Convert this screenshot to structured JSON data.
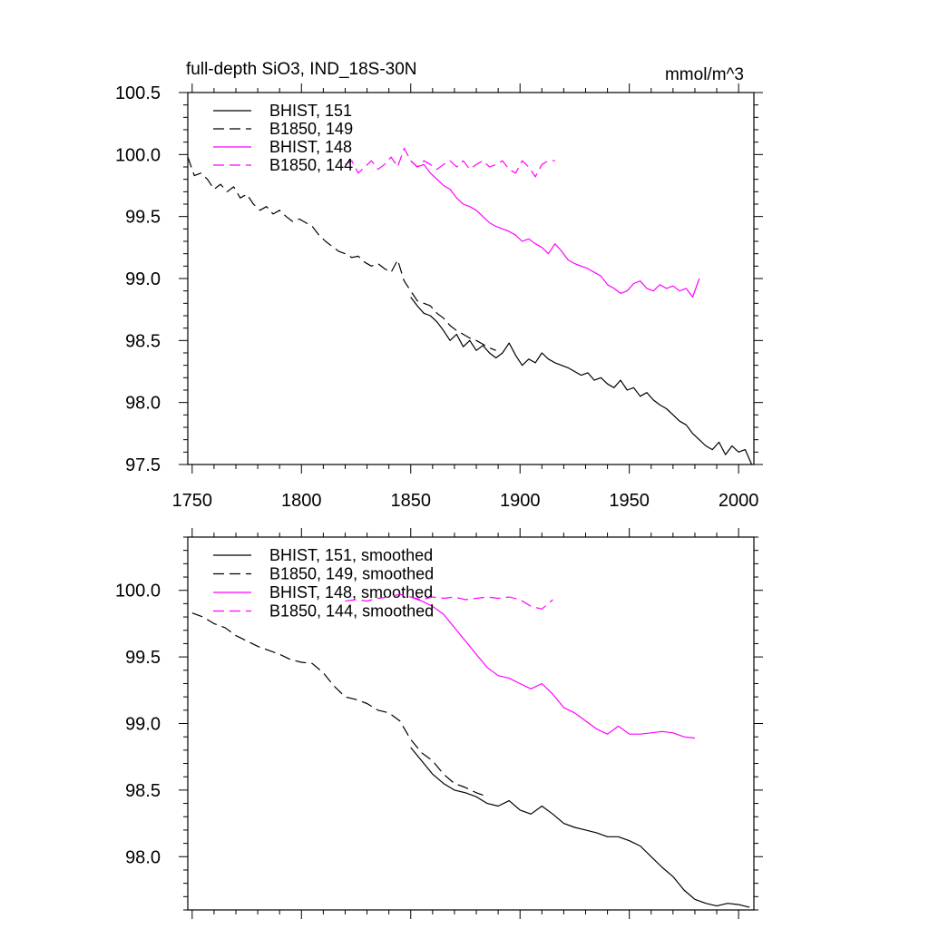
{
  "figure": {
    "title_left": "full-depth SiO3, IND_18S-30N",
    "title_right": "mmol/m^3"
  },
  "colors": {
    "black": "#000000",
    "magenta": "#ff00ff"
  },
  "chart_data": [
    {
      "type": "line",
      "panel": "top",
      "title": "full-depth SiO3, IND_18S-30N",
      "units": "mmol/m^3",
      "xlim": [
        1748,
        2007
      ],
      "ylim": [
        97.5,
        100.5
      ],
      "xticks": [
        1750,
        1800,
        1850,
        1900,
        1950,
        2000
      ],
      "xtick_labels": [
        "1750",
        "1800",
        "1850",
        "1900",
        "1950",
        "2000"
      ],
      "yticks": [
        97.5,
        98.0,
        98.5,
        99.0,
        99.5,
        100.0,
        100.5
      ],
      "ytick_labels": [
        "97.5",
        "98.0",
        "98.5",
        "99.0",
        "99.5",
        "100.0",
        "100.5"
      ],
      "grid": false,
      "legend": "top-left",
      "series": [
        {
          "name": "BHIST, 151",
          "color": "#000000",
          "dash": "solid",
          "x": [
            1850,
            1853,
            1856,
            1859,
            1862,
            1865,
            1868,
            1871,
            1874,
            1877,
            1880,
            1883,
            1886,
            1889,
            1892,
            1895,
            1898,
            1901,
            1904,
            1907,
            1910,
            1913,
            1916,
            1919,
            1922,
            1925,
            1928,
            1931,
            1934,
            1937,
            1940,
            1943,
            1946,
            1949,
            1952,
            1955,
            1958,
            1961,
            1964,
            1967,
            1970,
            1973,
            1976,
            1979,
            1982,
            1985,
            1988,
            1991,
            1994,
            1997,
            2000,
            2003,
            2006
          ],
          "y": [
            98.85,
            98.78,
            98.72,
            98.7,
            98.65,
            98.58,
            98.5,
            98.55,
            98.45,
            98.5,
            98.42,
            98.46,
            98.4,
            98.36,
            98.4,
            98.48,
            98.38,
            98.3,
            98.35,
            98.32,
            98.4,
            98.35,
            98.32,
            98.3,
            98.28,
            98.25,
            98.22,
            98.24,
            98.18,
            98.2,
            98.15,
            98.12,
            98.18,
            98.1,
            98.12,
            98.05,
            98.08,
            98.02,
            97.98,
            97.95,
            97.9,
            97.85,
            97.82,
            97.75,
            97.7,
            97.65,
            97.62,
            97.68,
            97.58,
            97.65,
            97.6,
            97.62,
            97.5
          ]
        },
        {
          "name": "B1850, 149",
          "color": "#000000",
          "dash": "dashed",
          "x": [
            1748,
            1751,
            1754,
            1757,
            1760,
            1763,
            1766,
            1769,
            1772,
            1775,
            1778,
            1781,
            1784,
            1787,
            1790,
            1793,
            1796,
            1799,
            1802,
            1805,
            1808,
            1811,
            1814,
            1817,
            1820,
            1823,
            1826,
            1829,
            1832,
            1835,
            1838,
            1841,
            1844,
            1847,
            1850,
            1853,
            1856,
            1859,
            1862,
            1865,
            1868,
            1871,
            1874,
            1877,
            1880,
            1883,
            1886,
            1889
          ],
          "y": [
            99.98,
            99.83,
            99.85,
            99.8,
            99.72,
            99.76,
            99.7,
            99.74,
            99.65,
            99.68,
            99.6,
            99.55,
            99.58,
            99.52,
            99.55,
            99.5,
            99.46,
            99.48,
            99.45,
            99.42,
            99.35,
            99.3,
            99.26,
            99.22,
            99.2,
            99.17,
            99.18,
            99.13,
            99.1,
            99.12,
            99.08,
            99.05,
            99.15,
            98.98,
            98.9,
            98.82,
            98.8,
            98.78,
            98.72,
            98.68,
            98.62,
            98.58,
            98.55,
            98.52,
            98.5,
            98.47,
            98.44,
            98.42
          ]
        },
        {
          "name": "BHIST, 148",
          "color": "#ff00ff",
          "dash": "solid",
          "x": [
            1850,
            1853,
            1856,
            1859,
            1862,
            1865,
            1868,
            1871,
            1874,
            1877,
            1880,
            1883,
            1886,
            1889,
            1892,
            1895,
            1898,
            1901,
            1904,
            1907,
            1910,
            1913,
            1916,
            1919,
            1922,
            1925,
            1928,
            1931,
            1934,
            1937,
            1940,
            1943,
            1946,
            1949,
            1952,
            1955,
            1958,
            1961,
            1964,
            1967,
            1970,
            1973,
            1976,
            1979,
            1982
          ],
          "y": [
            99.95,
            99.9,
            99.92,
            99.85,
            99.8,
            99.75,
            99.72,
            99.65,
            99.6,
            99.58,
            99.55,
            99.5,
            99.45,
            99.42,
            99.4,
            99.38,
            99.35,
            99.3,
            99.32,
            99.28,
            99.25,
            99.2,
            99.28,
            99.22,
            99.15,
            99.12,
            99.1,
            99.08,
            99.05,
            99.02,
            98.95,
            98.92,
            98.88,
            98.9,
            98.96,
            98.98,
            98.92,
            98.9,
            98.95,
            98.92,
            98.94,
            98.9,
            98.92,
            98.85,
            99.0
          ]
        },
        {
          "name": "B1850, 144",
          "color": "#ff00ff",
          "dash": "dashed",
          "x": [
            1820,
            1823,
            1826,
            1829,
            1832,
            1835,
            1838,
            1841,
            1844,
            1847,
            1850,
            1853,
            1856,
            1859,
            1862,
            1865,
            1868,
            1871,
            1874,
            1877,
            1880,
            1883,
            1886,
            1889,
            1892,
            1895,
            1898,
            1901,
            1904,
            1907,
            1910,
            1913,
            1916
          ],
          "y": [
            99.92,
            99.95,
            99.85,
            99.9,
            99.95,
            99.88,
            99.92,
            99.98,
            99.9,
            100.05,
            99.95,
            99.9,
            99.95,
            99.92,
            99.88,
            99.92,
            99.95,
            99.9,
            99.95,
            99.88,
            99.92,
            99.95,
            99.9,
            99.92,
            99.95,
            99.88,
            99.85,
            99.95,
            99.9,
            99.82,
            99.92,
            99.95,
            99.95
          ]
        }
      ]
    },
    {
      "type": "line",
      "panel": "bottom",
      "xlim": [
        1748,
        2007
      ],
      "ylim": [
        97.6,
        100.4
      ],
      "xticks": [
        1750,
        1800,
        1850,
        1900,
        1950,
        2000
      ],
      "yticks": [
        98.0,
        98.5,
        99.0,
        99.5,
        100.0
      ],
      "ytick_labels": [
        "98.0",
        "98.5",
        "99.0",
        "99.5",
        "100.0"
      ],
      "grid": false,
      "legend": "top-left",
      "series": [
        {
          "name": "BHIST, 151, smoothed",
          "color": "#000000",
          "dash": "solid",
          "x": [
            1850,
            1855,
            1860,
            1865,
            1870,
            1875,
            1880,
            1885,
            1890,
            1895,
            1900,
            1905,
            1910,
            1915,
            1920,
            1925,
            1930,
            1935,
            1940,
            1945,
            1950,
            1955,
            1960,
            1965,
            1970,
            1975,
            1980,
            1985,
            1990,
            1995,
            2000,
            2005
          ],
          "y": [
            98.82,
            98.72,
            98.62,
            98.55,
            98.5,
            98.48,
            98.45,
            98.4,
            98.38,
            98.42,
            98.35,
            98.32,
            98.38,
            98.32,
            98.25,
            98.22,
            98.2,
            98.18,
            98.15,
            98.15,
            98.12,
            98.08,
            98.0,
            97.92,
            97.85,
            97.75,
            97.68,
            97.65,
            97.63,
            97.65,
            97.64,
            97.62
          ]
        },
        {
          "name": "B1850, 149, smoothed",
          "color": "#000000",
          "dash": "dashed",
          "x": [
            1750,
            1755,
            1760,
            1765,
            1770,
            1775,
            1780,
            1785,
            1790,
            1795,
            1800,
            1805,
            1810,
            1815,
            1820,
            1825,
            1830,
            1835,
            1840,
            1845,
            1850,
            1855,
            1860,
            1865,
            1870,
            1875,
            1880,
            1885
          ],
          "y": [
            99.83,
            99.8,
            99.75,
            99.72,
            99.66,
            99.62,
            99.58,
            99.55,
            99.52,
            99.48,
            99.46,
            99.45,
            99.38,
            99.28,
            99.2,
            99.18,
            99.15,
            99.1,
            99.08,
            99.02,
            98.88,
            98.78,
            98.72,
            98.62,
            98.55,
            98.52,
            98.48,
            98.45
          ]
        },
        {
          "name": "BHIST, 148, smoothed",
          "color": "#ff00ff",
          "dash": "solid",
          "x": [
            1850,
            1855,
            1860,
            1865,
            1870,
            1875,
            1880,
            1885,
            1890,
            1895,
            1900,
            1905,
            1910,
            1915,
            1920,
            1925,
            1930,
            1935,
            1940,
            1945,
            1950,
            1955,
            1960,
            1965,
            1970,
            1975,
            1980
          ],
          "y": [
            99.95,
            99.92,
            99.88,
            99.82,
            99.72,
            99.62,
            99.52,
            99.42,
            99.36,
            99.34,
            99.3,
            99.26,
            99.3,
            99.22,
            99.12,
            99.08,
            99.02,
            98.96,
            98.92,
            98.98,
            98.92,
            98.92,
            98.93,
            98.94,
            98.93,
            98.9,
            98.89
          ]
        },
        {
          "name": "B1850, 144, smoothed",
          "color": "#ff00ff",
          "dash": "dashed",
          "x": [
            1820,
            1825,
            1830,
            1835,
            1840,
            1845,
            1850,
            1855,
            1860,
            1865,
            1870,
            1875,
            1880,
            1885,
            1890,
            1895,
            1900,
            1905,
            1910,
            1915
          ],
          "y": [
            99.92,
            99.93,
            99.92,
            99.94,
            99.95,
            99.97,
            99.95,
            99.93,
            99.95,
            99.94,
            99.95,
            99.93,
            99.94,
            99.95,
            99.94,
            99.95,
            99.93,
            99.88,
            99.86,
            99.93
          ]
        }
      ]
    }
  ]
}
